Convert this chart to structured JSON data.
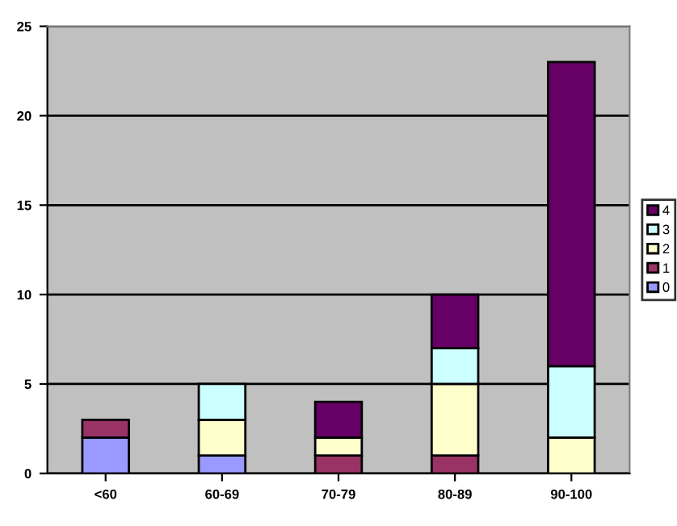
{
  "chart_data": {
    "type": "bar",
    "stacked": true,
    "categories": [
      "<60",
      "60-69",
      "70-79",
      "80-89",
      "90-100"
    ],
    "series": [
      {
        "name": "0",
        "color": "#9999ff",
        "values": [
          2,
          1,
          0,
          0,
          0
        ]
      },
      {
        "name": "1",
        "color": "#993366",
        "values": [
          1,
          0,
          1,
          1,
          0
        ]
      },
      {
        "name": "2",
        "color": "#ffffcc",
        "values": [
          0,
          2,
          1,
          4,
          2
        ]
      },
      {
        "name": "3",
        "color": "#ccffff",
        "values": [
          0,
          2,
          0,
          2,
          4
        ]
      },
      {
        "name": "4",
        "color": "#660066",
        "values": [
          0,
          0,
          2,
          3,
          17
        ]
      }
    ],
    "ylim": [
      0,
      25
    ],
    "yticks": [
      0,
      5,
      10,
      15,
      20,
      25
    ],
    "grid": "y",
    "legend": "right"
  }
}
